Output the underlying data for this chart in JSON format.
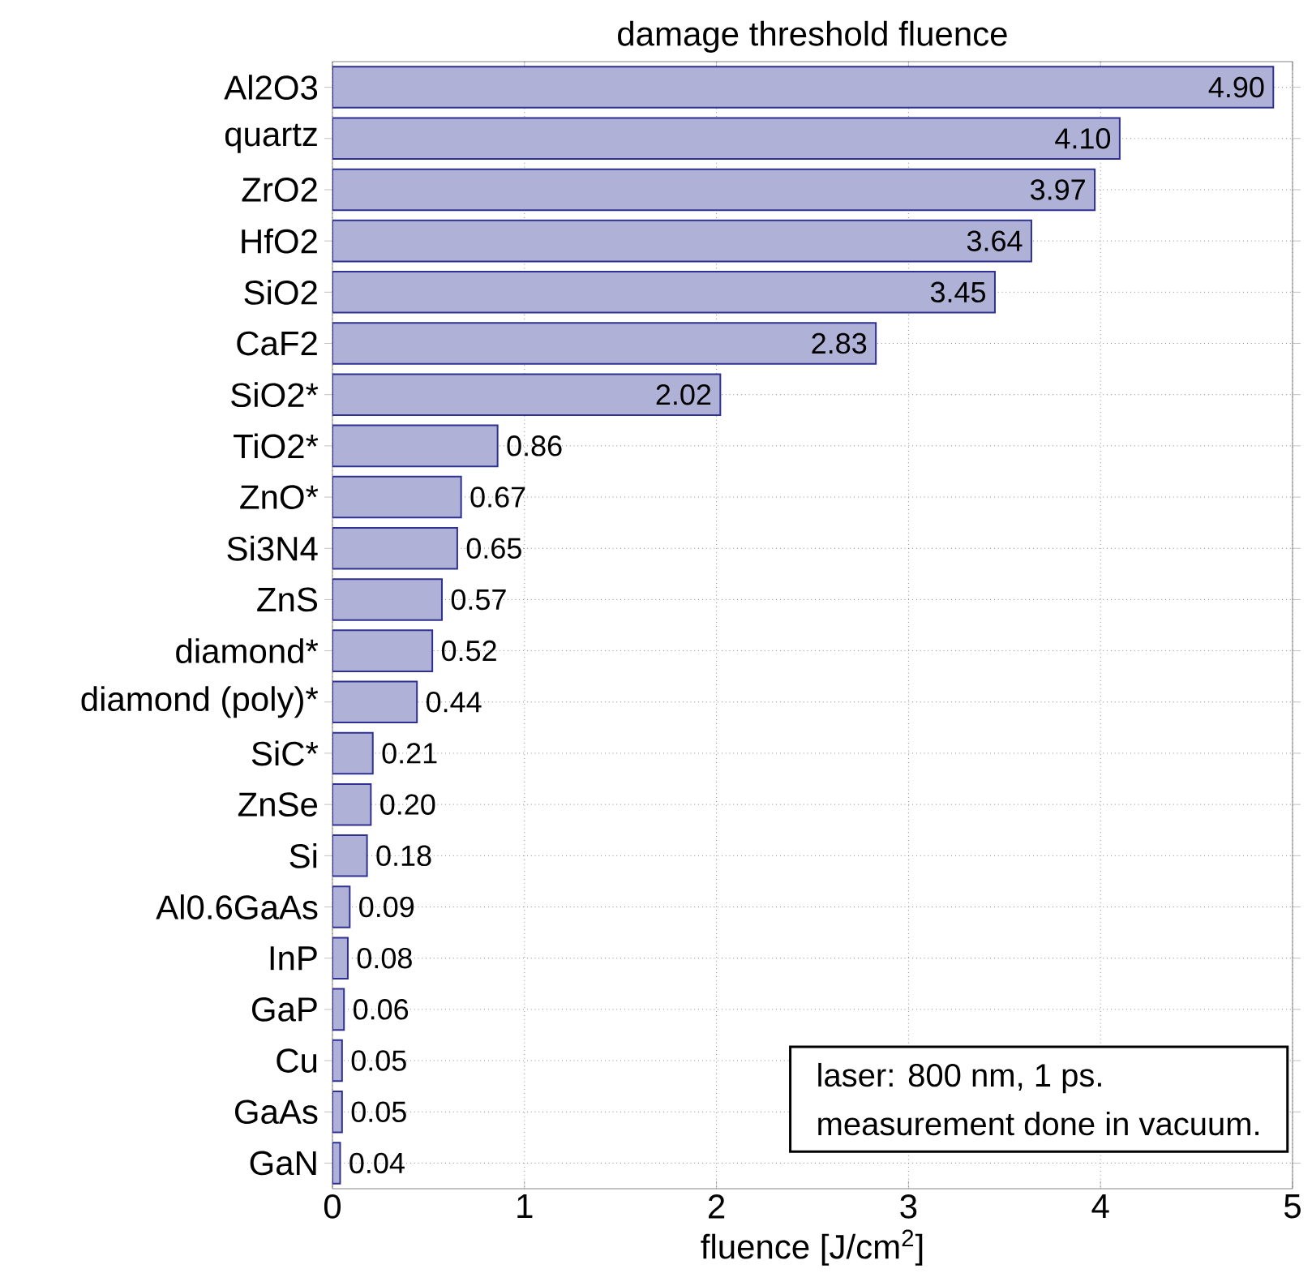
{
  "chart_data": {
    "type": "bar",
    "orientation": "horizontal",
    "title": "damage threshold fluence",
    "xlabel": "fluence [J/cm$^{2}$]",
    "categories": [
      "Al2O3",
      "quartz",
      "ZrO2",
      "HfO2",
      "SiO2",
      "CaF2",
      "SiO2*",
      "TiO2*",
      "ZnO*",
      "Si3N4",
      "ZnS",
      "diamond*",
      "diamond (poly)*",
      "SiC*",
      "ZnSe",
      "Si",
      "Al0.6GaAs",
      "InP",
      "GaP",
      "Cu",
      "GaAs",
      "GaN"
    ],
    "values": [
      4.9,
      4.1,
      3.97,
      3.64,
      3.45,
      2.83,
      2.02,
      0.86,
      0.67,
      0.65,
      0.57,
      0.52,
      0.44,
      0.21,
      0.2,
      0.18,
      0.09,
      0.08,
      0.06,
      0.05,
      0.05,
      0.04
    ],
    "value_labels": [
      "4.90",
      "4.10",
      "3.97",
      "3.64",
      "3.45",
      "2.83",
      "2.02",
      "0.86",
      "0.67",
      "0.65",
      "0.57",
      "0.52",
      "0.44",
      "0.21",
      "0.20",
      "0.18",
      "0.09",
      "0.08",
      "0.06",
      "0.05",
      "0.05",
      "0.04"
    ],
    "color": "#b0b1d6",
    "xlim": [
      0,
      5
    ],
    "xticks": [
      0,
      1,
      2,
      3,
      4,
      5
    ],
    "grid": true,
    "annotations": [
      "laser: 800 nm, 1 ps.",
      "measurement done in vacuum."
    ]
  }
}
